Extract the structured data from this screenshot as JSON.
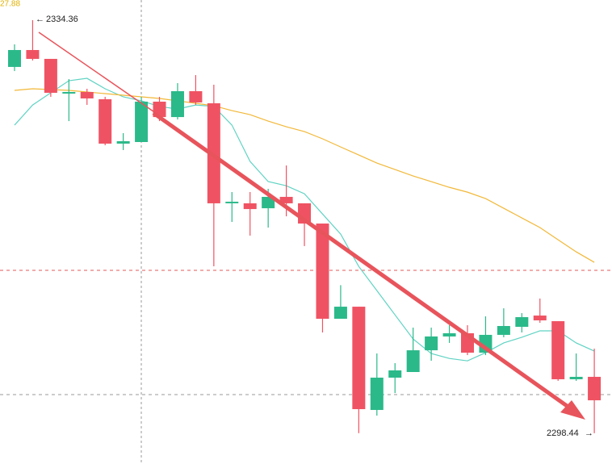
{
  "chart_data": {
    "type": "candlestick",
    "corner_label": "27.88",
    "open": [
      2330.29,
      2331.76,
      2330.99,
      2327.97,
      2328.11,
      2327.48,
      2323.62,
      2323.76,
      2327.27,
      2325.93,
      2328.18,
      2327.13,
      2318.43,
      2318.43,
      2318.0,
      2318.99,
      2318.43,
      2316.67,
      2308.39,
      2309.44,
      2300.46,
      2303.27,
      2303.76,
      2305.65,
      2306.85,
      2307.13,
      2305.44,
      2306.99,
      2307.69,
      2308.67,
      2308.18,
      2303.13,
      2303.34
    ],
    "close": [
      2331.76,
      2330.99,
      2328.04,
      2328.11,
      2327.55,
      2323.62,
      2323.83,
      2327.27,
      2325.93,
      2328.18,
      2327.2,
      2318.43,
      2318.57,
      2317.93,
      2318.99,
      2318.43,
      2316.67,
      2308.39,
      2309.44,
      2300.53,
      2303.27,
      2303.9,
      2305.65,
      2306.85,
      2307.13,
      2305.44,
      2306.99,
      2307.76,
      2308.53,
      2308.25,
      2303.13,
      2303.34,
      2301.3
    ],
    "high": [
      2332.25,
      2334.36,
      2330.99,
      2329.23,
      2328.39,
      2327.69,
      2324.53,
      2327.69,
      2327.69,
      2328.88,
      2329.58,
      2328.74,
      2319.41,
      2319.41,
      2319.69,
      2321.72,
      2318.43,
      2316.67,
      2311.31,
      2309.44,
      2305.37,
      2304.53,
      2307.62,
      2307.62,
      2307.83,
      2307.83,
      2308.6,
      2309.3,
      2308.88,
      2310.15,
      2308.18,
      2305.37,
      2305.79
    ],
    "low": [
      2329.93,
      2330.85,
      2327.69,
      2325.58,
      2326.99,
      2323.48,
      2323.06,
      2323.76,
      2325.58,
      2325.72,
      2326.99,
      2312.95,
      2316.81,
      2315.62,
      2316.32,
      2317.3,
      2314.71,
      2307.2,
      2308.39,
      2298.44,
      2299.97,
      2301.93,
      2303.76,
      2304.74,
      2306.29,
      2305.23,
      2305.23,
      2306.78,
      2307.2,
      2308.04,
      2302.99,
      2302.99,
      2298.44
    ],
    "up_color": "#2bb98a",
    "down_color": "#ef5363",
    "lines": [
      {
        "color": "#5fd3c3",
        "values": [
          2325.23,
          2326.98,
          2328.04,
          2329.09,
          2329.3,
          2328.39,
          2327.69,
          2327.34,
          2326.85,
          2326.63,
          2326.98,
          2326.85,
          2325.23,
          2322.07,
          2320.32,
          2319.96,
          2319.26,
          2317.5,
          2315.75,
          2312.94,
          2310.84,
          2308.73,
          2306.63,
          2305.37,
          2304.94,
          2304.73,
          2305.44,
          2306.29,
          2306.78,
          2307.34,
          2307.34,
          2306.29,
          2305.58
        ]
      },
      {
        "color": "#f2b838",
        "values": [
          2328.25,
          2328.39,
          2328.32,
          2328.25,
          2328.11,
          2327.97,
          2327.83,
          2327.69,
          2327.55,
          2327.34,
          2327.13,
          2326.91,
          2326.49,
          2326.14,
          2325.58,
          2325.09,
          2324.67,
          2324.04,
          2323.33,
          2322.63,
          2321.93,
          2321.37,
          2320.81,
          2320.32,
          2319.82,
          2319.4,
          2318.84,
          2318.0,
          2317.16,
          2316.32,
          2315.26,
          2314.21,
          2313.3
        ]
      }
    ],
    "ylim": [
      2295.76,
      2336.11
    ],
    "annotations": [
      "2334.36",
      "2298.44"
    ]
  }
}
